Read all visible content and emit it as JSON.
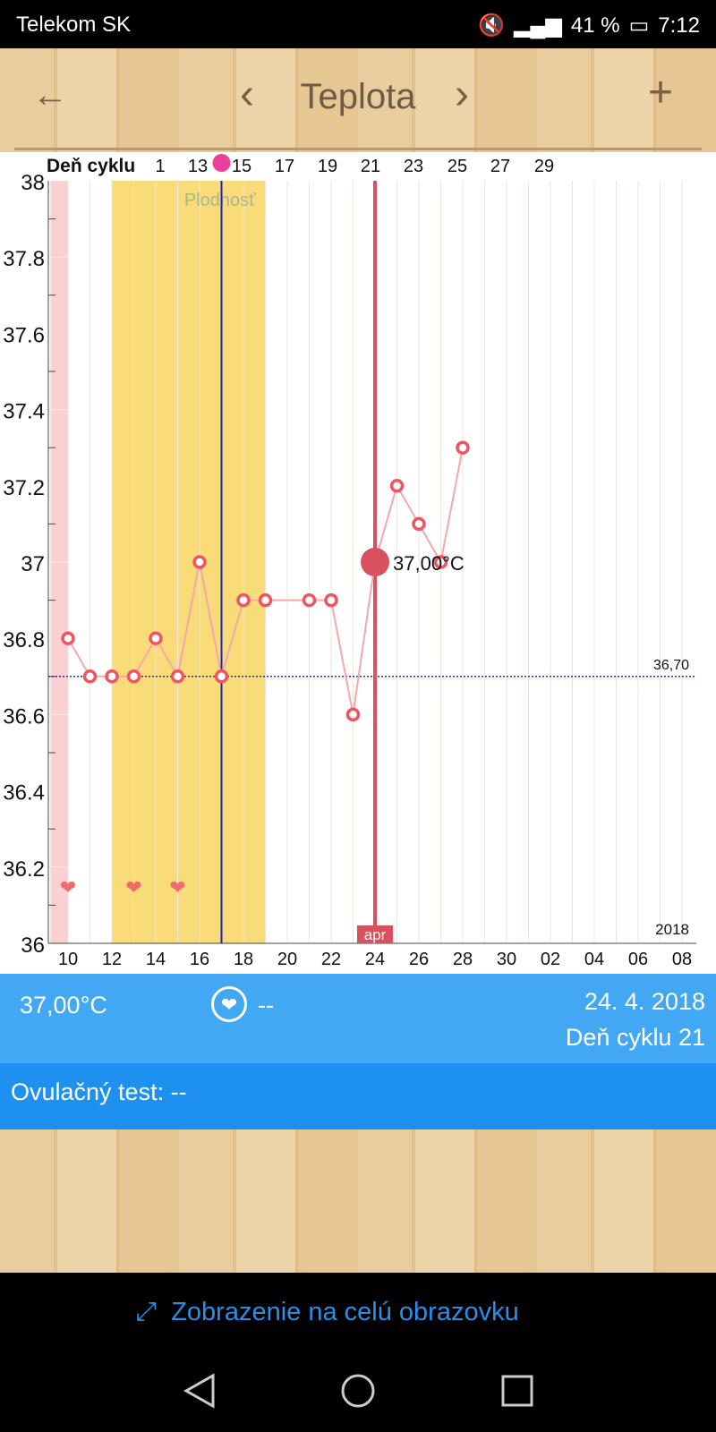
{
  "status": {
    "carrier": "Telekom SK",
    "battery": "41 %",
    "time": "7:12"
  },
  "toolbar": {
    "title": "Teplota",
    "back": "←",
    "prev": "‹",
    "next": "›",
    "add": "+"
  },
  "chart_data": {
    "type": "line",
    "cycle_label": "Deň cyklu",
    "cycle_ticks": [
      "1",
      "13",
      "15",
      "17",
      "19",
      "21",
      "23",
      "25",
      "27",
      "29"
    ],
    "x_ticks": [
      "10",
      "12",
      "14",
      "16",
      "18",
      "20",
      "22",
      "24",
      "26",
      "28",
      "30",
      "02",
      "04",
      "06",
      "08"
    ],
    "y_ticks": [
      "36",
      "36.2",
      "36.4",
      "36.6",
      "36.8",
      "37",
      "37.2",
      "37.4",
      "37.6",
      "37.8",
      "38"
    ],
    "ylim": [
      36,
      38
    ],
    "points": [
      [
        10,
        36.8
      ],
      [
        11,
        36.7
      ],
      [
        12,
        36.7
      ],
      [
        13,
        36.7
      ],
      [
        14,
        36.8
      ],
      [
        15,
        36.7
      ],
      [
        16,
        37.0
      ],
      [
        17,
        36.7
      ],
      [
        18,
        36.9
      ],
      [
        19,
        36.9
      ],
      [
        21,
        36.9
      ],
      [
        22,
        36.9
      ],
      [
        23,
        36.6
      ],
      [
        24,
        37.0
      ],
      [
        25,
        37.2
      ],
      [
        26,
        37.1
      ],
      [
        27,
        37.0
      ],
      [
        28,
        37.3
      ]
    ],
    "selected": {
      "day": 24,
      "value": 37.0,
      "label": "37,00°C"
    },
    "coverline": {
      "value": 36.7,
      "label": "36,70"
    },
    "fertile_label": "Plodnosť",
    "fertile_range": [
      12,
      19
    ],
    "period_range": [
      9.2,
      10
    ],
    "ovulation_day": 17,
    "hearts": [
      10,
      13,
      15
    ],
    "month_label": "apr",
    "year_label": "2018",
    "colors": {
      "point": "#ee5560",
      "line": "#f5a8ab",
      "fertile": "#f9dc78",
      "period": "#fbd0d2",
      "ovulation": "#1a24c8",
      "selected": "#d9505e",
      "coverline": "#1a24c8"
    }
  },
  "info": {
    "temp": "37,00°C",
    "sex": "--",
    "date": "24. 4. 2018",
    "cycle_day": "Deň cyklu 21"
  },
  "ovulation_test": "Ovulačný test: --",
  "fullscreen": "Zobrazenie na celú obrazovku"
}
